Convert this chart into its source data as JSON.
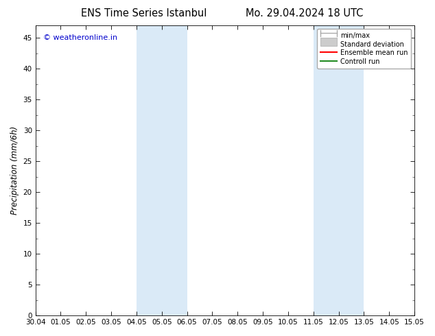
{
  "title_left": "ENS Time Series Istanbul",
  "title_right": "Mo. 29.04.2024 18 UTC",
  "ylabel": "Precipitation (mm/6h)",
  "watermark": "© weatheronline.in",
  "watermark_color": "#0000cc",
  "ymin": 0,
  "ymax": 47,
  "yticks": [
    0,
    5,
    10,
    15,
    20,
    25,
    30,
    35,
    40,
    45
  ],
  "xtick_labels": [
    "30.04",
    "01.05",
    "02.05",
    "03.05",
    "04.05",
    "05.05",
    "06.05",
    "07.05",
    "08.05",
    "09.05",
    "10.05",
    "11.05",
    "12.05",
    "13.05",
    "14.05",
    "15.05"
  ],
  "shade_pairs": [
    [
      "04.05",
      "06.05"
    ],
    [
      "11.05",
      "13.05"
    ]
  ],
  "shade_color": "#daeaf7",
  "bg_color": "#ffffff",
  "tick_fontsize": 7.5,
  "label_fontsize": 8.5,
  "title_fontsize": 10.5
}
